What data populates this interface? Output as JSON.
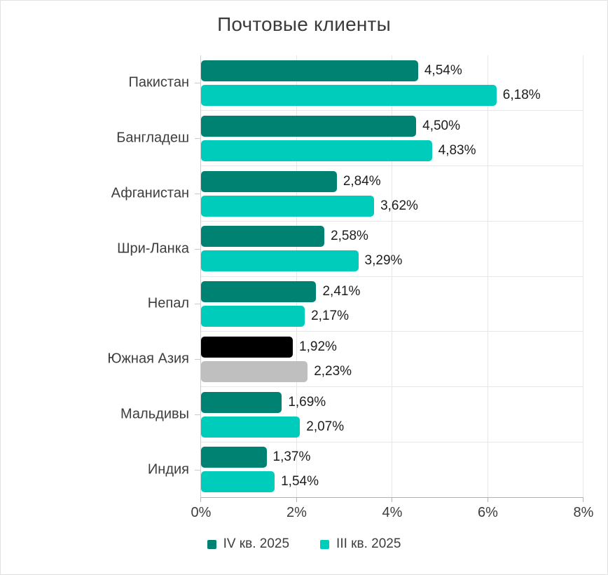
{
  "window": {
    "background": "#ffffff",
    "border_color": "#e2e2e2"
  },
  "chart_data": {
    "type": "bar",
    "orientation": "horizontal",
    "title": "Почтовые клиенты",
    "categories": [
      "Пакистан",
      "Бангладеш",
      "Афганистан",
      "Шри-Ланка",
      "Непал",
      "Южная Азия",
      "Мальдивы",
      "Индия"
    ],
    "series": [
      {
        "name": "IV кв. 2025",
        "color": "#008272",
        "values": [
          4.54,
          4.5,
          2.84,
          2.58,
          2.41,
          1.92,
          1.69,
          1.37
        ],
        "value_labels": [
          "4,54%",
          "4,50%",
          "2,84%",
          "2,58%",
          "2,41%",
          "1,92%",
          "1,69%",
          "1,37%"
        ]
      },
      {
        "name": "III кв. 2025",
        "color": "#00CCBC",
        "values": [
          6.18,
          4.83,
          3.62,
          3.29,
          2.17,
          2.23,
          2.07,
          1.54
        ],
        "value_labels": [
          "6,18%",
          "4,83%",
          "3,62%",
          "3,29%",
          "2,17%",
          "2,23%",
          "2,07%",
          "1,54%"
        ]
      }
    ],
    "highlight": {
      "category": "Южная Азия",
      "series_colors": [
        "#000000",
        "#BFBFBF"
      ]
    },
    "x_ticks": [
      "0%",
      "2%",
      "4%",
      "6%",
      "8%"
    ],
    "xlim": [
      0,
      8
    ],
    "grid": true,
    "legend_position": "bottom",
    "axis_color": "#b3b3b3",
    "gridline_color": "#e7e7e7"
  }
}
